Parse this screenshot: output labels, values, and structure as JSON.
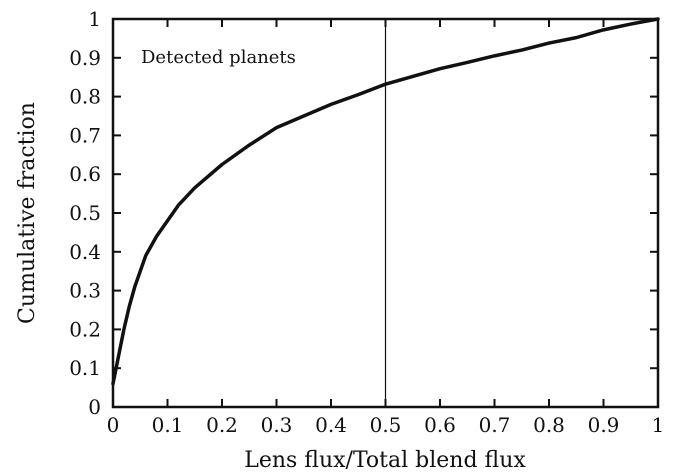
{
  "chart_data": {
    "type": "line",
    "xlabel": "Lens flux/Total blend flux",
    "ylabel": "Cumulative fraction",
    "annotation": "Detected planets",
    "xlim": [
      0,
      1
    ],
    "ylim": [
      0,
      1
    ],
    "xticks": [
      0,
      0.1,
      0.2,
      0.3,
      0.4,
      0.5,
      0.6,
      0.7,
      0.8,
      0.9,
      1
    ],
    "yticks": [
      0,
      0.1,
      0.2,
      0.3,
      0.4,
      0.5,
      0.6,
      0.7,
      0.8,
      0.9,
      1
    ],
    "xtick_labels": [
      "0",
      "0.1",
      "0.2",
      "0.3",
      "0.4",
      "0.5",
      "0.6",
      "0.7",
      "0.8",
      "0.9",
      "1"
    ],
    "ytick_labels": [
      "0",
      "0.1",
      "0.2",
      "0.3",
      "0.4",
      "0.5",
      "0.6",
      "0.7",
      "0.8",
      "0.9",
      "1"
    ],
    "grid": false,
    "reference_line_x": 0.5,
    "series": [
      {
        "x": [
          0,
          0.01,
          0.02,
          0.03,
          0.04,
          0.05,
          0.06,
          0.08,
          0.1,
          0.12,
          0.15,
          0.2,
          0.25,
          0.3,
          0.35,
          0.4,
          0.45,
          0.5,
          0.55,
          0.6,
          0.65,
          0.7,
          0.75,
          0.8,
          0.85,
          0.9,
          0.95,
          1
        ],
        "values": [
          0.06,
          0.13,
          0.2,
          0.26,
          0.31,
          0.35,
          0.39,
          0.44,
          0.48,
          0.52,
          0.565,
          0.625,
          0.675,
          0.72,
          0.75,
          0.78,
          0.805,
          0.832,
          0.852,
          0.872,
          0.888,
          0.905,
          0.92,
          0.938,
          0.952,
          0.972,
          0.987,
          1.0
        ]
      }
    ]
  }
}
